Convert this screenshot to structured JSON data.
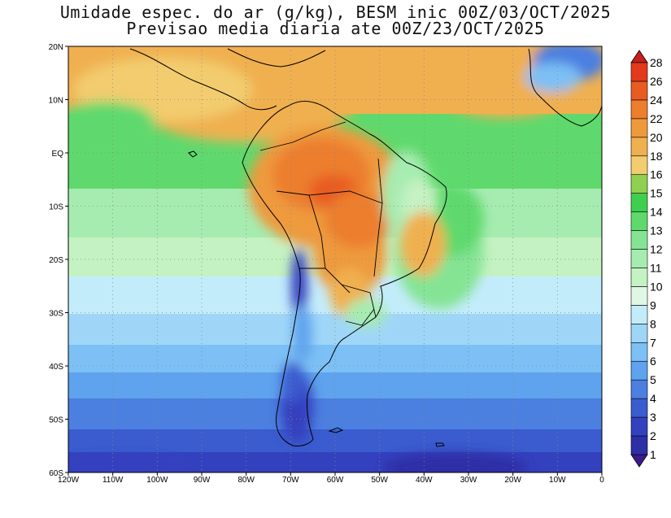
{
  "map": {
    "title_line1": "Umidade espec. do ar (g/kg), BESM inic 00Z/03/OCT/2025",
    "title_line2": "Previsao media diaria ate 00Z/23/OCT/2025",
    "lat_labels": [
      "20N",
      "10N",
      "EQ",
      "10S",
      "20S",
      "30S",
      "40S",
      "50S",
      "60S"
    ],
    "lon_labels": [
      "120W",
      "110W",
      "100W",
      "90W",
      "80W",
      "70W",
      "60W",
      "50W",
      "40W",
      "30W",
      "20W",
      "10W",
      "0"
    ],
    "extent": {
      "lon_min": -120,
      "lon_max": 0,
      "lat_min": -60,
      "lat_max": 20
    },
    "grid": "dotted"
  },
  "colorbar": {
    "units": "g/kg",
    "labels": [
      "1",
      "2",
      "3",
      "4",
      "5",
      "6",
      "7",
      "8",
      "9",
      "10",
      "11",
      "12",
      "13",
      "14",
      "15",
      "16",
      "18",
      "20",
      "22",
      "24",
      "26",
      "28"
    ],
    "colors": [
      "#3a1a8c",
      "#2d2fa6",
      "#3441bf",
      "#3a5ccf",
      "#4b7fe0",
      "#5fa3ee",
      "#7cc0f5",
      "#9fd6f8",
      "#c3ecfb",
      "#e0f7e6",
      "#c5f2c2",
      "#a6ecb0",
      "#84e494",
      "#5fd96d",
      "#3fcf4f",
      "#8fd050",
      "#f2cc6e",
      "#f0b050",
      "#ee9a3c",
      "#ec7e2e",
      "#e85c22",
      "#e23a1a",
      "#c81e1e"
    ]
  }
}
